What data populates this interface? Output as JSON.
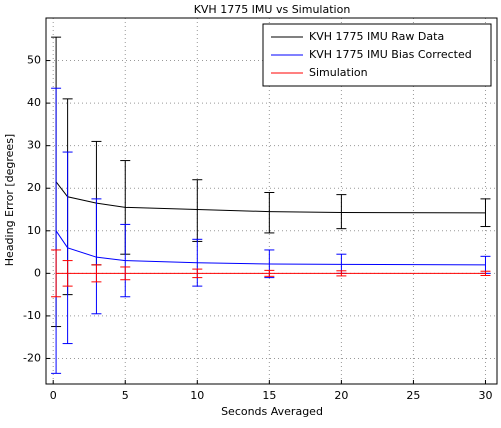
{
  "chart_data": {
    "type": "errorbar",
    "title": "KVH 1775 IMU vs Simulation",
    "x_label": "Seconds Averaged",
    "y_label": "Heading Error [degrees]",
    "x": [
      0.2,
      1,
      3,
      5,
      10,
      15,
      20,
      30
    ],
    "series": [
      {
        "name": "KVH 1775 IMU Raw Data",
        "color": "#000000",
        "values": [
          21.5,
          18,
          16.5,
          15.5,
          15,
          14.5,
          14.3,
          14.2
        ],
        "lower": [
          -12.5,
          -5,
          2,
          4.5,
          7.5,
          9.5,
          10.5,
          11
        ],
        "upper": [
          55.5,
          41,
          31,
          26.5,
          22,
          19,
          18.5,
          17.5
        ]
      },
      {
        "name": "KVH 1775 IMU Bias Corrected",
        "color": "#0000ff",
        "values": [
          10,
          6,
          3.8,
          3,
          2.5,
          2.2,
          2.1,
          2
        ],
        "lower": [
          -23.5,
          -16.5,
          -9.5,
          -5.5,
          -3,
          -1,
          0,
          0
        ],
        "upper": [
          43.5,
          28.5,
          17.5,
          11.5,
          8,
          5.5,
          4.5,
          4
        ]
      },
      {
        "name": "Simulation",
        "color": "#ff0000",
        "values": [
          0,
          0,
          0,
          0,
          0,
          0,
          0,
          0
        ],
        "lower": [
          -5.5,
          -3,
          -2,
          -1.5,
          -1,
          -0.7,
          -0.6,
          -0.5
        ],
        "upper": [
          5.5,
          3,
          2,
          1.5,
          1,
          0.7,
          0.6,
          0.5
        ]
      }
    ],
    "xlim": [
      -0.5,
      30.8
    ],
    "ylim": [
      -26,
      60
    ],
    "xticks": [
      0,
      5,
      10,
      15,
      20,
      25,
      30
    ],
    "yticks": [
      -20,
      -10,
      0,
      10,
      20,
      30,
      40,
      50
    ],
    "grid": true,
    "legend": "upper right"
  }
}
